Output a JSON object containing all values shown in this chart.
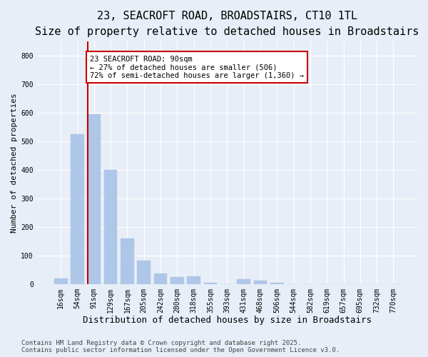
{
  "title1": "23, SEACROFT ROAD, BROADSTAIRS, CT10 1TL",
  "title2": "Size of property relative to detached houses in Broadstairs",
  "xlabel": "Distribution of detached houses by size in Broadstairs",
  "ylabel": "Number of detached properties",
  "categories": [
    "16sqm",
    "54sqm",
    "91sqm",
    "129sqm",
    "167sqm",
    "205sqm",
    "242sqm",
    "280sqm",
    "318sqm",
    "355sqm",
    "393sqm",
    "431sqm",
    "468sqm",
    "506sqm",
    "544sqm",
    "582sqm",
    "619sqm",
    "657sqm",
    "695sqm",
    "732sqm",
    "770sqm"
  ],
  "values": [
    20,
    525,
    595,
    400,
    160,
    83,
    38,
    25,
    28,
    5,
    0,
    18,
    12,
    5,
    0,
    0,
    0,
    0,
    0,
    0,
    0
  ],
  "bar_color": "#aec6e8",
  "bar_edge_color": "#aec6e8",
  "vline_x_index": 2,
  "vline_color": "#cc0000",
  "annotation_text": "23 SEACROFT ROAD: 90sqm\n← 27% of detached houses are smaller (506)\n72% of semi-detached houses are larger (1,360) →",
  "annotation_box_color": "#cc0000",
  "annotation_text_color": "#000000",
  "ylim": [
    0,
    850
  ],
  "yticks": [
    0,
    100,
    200,
    300,
    400,
    500,
    600,
    700,
    800
  ],
  "background_color": "#e8eef7",
  "plot_background": "#e8eef7",
  "grid_color": "#ffffff",
  "footer_text": "Contains HM Land Registry data © Crown copyright and database right 2025.\nContains public sector information licensed under the Open Government Licence v3.0.",
  "title1_fontsize": 11,
  "title2_fontsize": 9.5,
  "xlabel_fontsize": 9,
  "ylabel_fontsize": 8,
  "tick_fontsize": 7,
  "footer_fontsize": 6.5,
  "annotation_fontsize": 7.5
}
